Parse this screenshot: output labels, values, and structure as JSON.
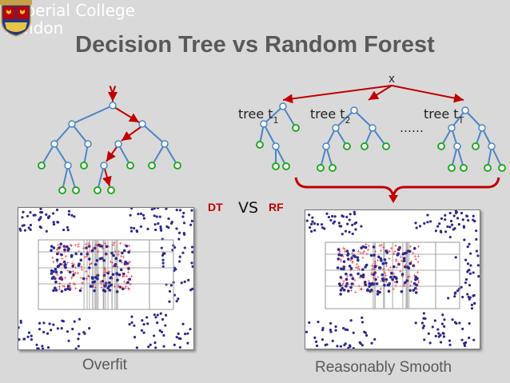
{
  "header": {
    "brand_line1": "Imperial College",
    "brand_line2": "London",
    "title": "Decision Tree vs Random Forest"
  },
  "diagram": {
    "single_tree_input": "v",
    "forest_input": "x",
    "tree_labels": {
      "t1": "tree t",
      "t1_sub": "1",
      "t2": "tree t",
      "t2_sub": "2",
      "tT": "tree t",
      "tT_sub": "T"
    },
    "ellipsis": "……",
    "dt_label": "DT",
    "vs_label": "VS",
    "rf_label": "RF"
  },
  "captions": {
    "left": "Overfit",
    "right": "Reasonably Smooth"
  },
  "colors": {
    "edge": "#4a86c5",
    "path": "#c00000",
    "leaf": "#22aa22",
    "node": "#4a86c5",
    "title_gray": "#595959",
    "points_blue": "#2b2b8f",
    "points_red": "#e8202a"
  }
}
